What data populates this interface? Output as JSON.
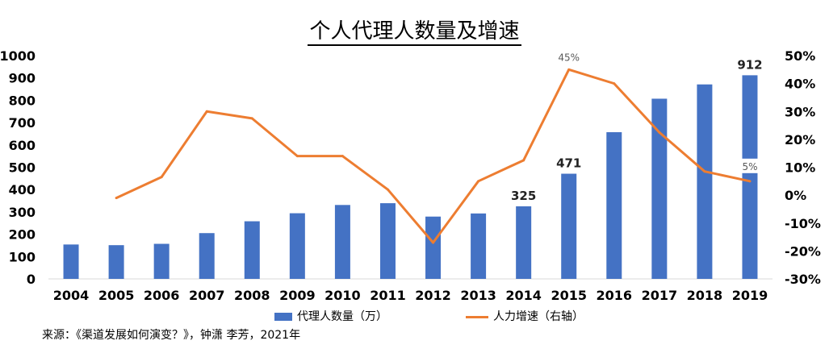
{
  "chart_data": {
    "type": "bar+line",
    "title": "个人代理人数量及增速",
    "categories": [
      "2004",
      "2005",
      "2006",
      "2007",
      "2008",
      "2009",
      "2010",
      "2011",
      "2012",
      "2013",
      "2014",
      "2015",
      "2016",
      "2017",
      "2018",
      "2019"
    ],
    "series": [
      {
        "name": "代理人数量（万）",
        "type": "bar",
        "axis": "left",
        "color": "#4472C4",
        "values": [
          154,
          151,
          157,
          205,
          258,
          294,
          331,
          339,
          279,
          293,
          325,
          471,
          657,
          807,
          871,
          912
        ]
      },
      {
        "name": "人力增速（右轴）",
        "type": "line",
        "axis": "right",
        "color": "#ED7D31",
        "values": [
          null,
          -0.01,
          0.065,
          0.3,
          0.275,
          0.14,
          0.14,
          0.02,
          -0.17,
          0.05,
          0.125,
          0.45,
          0.4,
          0.225,
          0.085,
          0.05
        ]
      }
    ],
    "y_left": {
      "ylim": [
        0,
        1000
      ],
      "ticks": [
        "0",
        "100",
        "200",
        "300",
        "400",
        "500",
        "600",
        "700",
        "800",
        "900",
        "1000"
      ]
    },
    "y_right": {
      "ylim": [
        -0.3,
        0.5
      ],
      "ticks": [
        "-30%",
        "-20%",
        "-10%",
        "0%",
        "10%",
        "20%",
        "30%",
        "40%",
        "50%"
      ]
    },
    "bar_labels": [
      {
        "category": "2014",
        "text": "325"
      },
      {
        "category": "2015",
        "text": "471"
      },
      {
        "category": "2019",
        "text": "912"
      }
    ],
    "line_labels": [
      {
        "category": "2015",
        "text": "45%"
      },
      {
        "category": "2019",
        "text": "5%"
      }
    ],
    "grid": false,
    "legend_placement": "bottom"
  },
  "source_text": "来源：《渠道发展如何演变？》，钟潇 李芳，2021年"
}
